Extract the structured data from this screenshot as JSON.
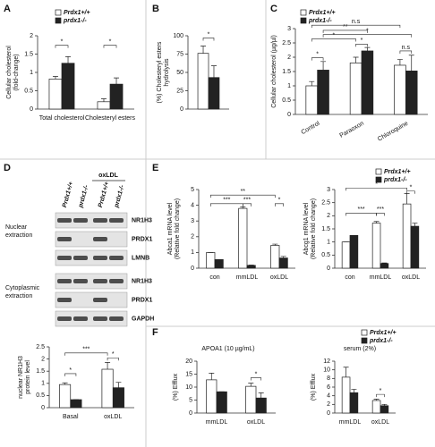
{
  "chart_data": [
    {
      "type": "bar",
      "panel": "A",
      "ylabel": [
        "Cellular cholesterol",
        "(fold-change)"
      ],
      "categories": [
        "Total cholesterol",
        "Cholesteryl esters"
      ],
      "series": [
        {
          "name": "Prdx1+/+",
          "color": "#ffffff",
          "values": [
            0.82,
            0.2
          ],
          "errors": [
            0.07,
            0.08
          ]
        },
        {
          "name": "prdx1-/-",
          "color": "#222222",
          "values": [
            1.25,
            0.68
          ],
          "errors": [
            0.18,
            0.17
          ]
        }
      ],
      "ylim": [
        0,
        2
      ],
      "yticks": [
        0,
        0.5,
        1,
        1.5,
        2
      ],
      "annotations": [
        "*",
        "*"
      ],
      "legend": "top"
    },
    {
      "type": "bar",
      "panel": "B",
      "ylabel": [
        "(%) Cholesteryl esters",
        "hydrolysis"
      ],
      "series": [
        {
          "color": "#ffffff",
          "values": [
            76
          ],
          "errors": [
            10
          ]
        },
        {
          "color": "#222222",
          "values": [
            43
          ],
          "errors": [
            16
          ]
        }
      ],
      "ylim": [
        0,
        100
      ],
      "yticks": [
        0,
        25,
        50,
        75,
        100
      ],
      "annotations": [
        "*"
      ]
    },
    {
      "type": "bar",
      "panel": "C",
      "ylabel": [
        "Cellular cholesterol (µg/µl)"
      ],
      "categories": [
        "Control",
        "Paraoxon",
        "Chloroquine"
      ],
      "series": [
        {
          "name": "Prdx1+/+",
          "color": "#ffffff",
          "values": [
            1.0,
            1.8,
            1.72
          ],
          "errors": [
            0.15,
            0.2,
            0.2
          ]
        },
        {
          "name": "prdx1-/-",
          "color": "#222222",
          "values": [
            1.55,
            2.22,
            1.52
          ],
          "errors": [
            0.3,
            0.12,
            0.55
          ]
        }
      ],
      "ylim": [
        0,
        3
      ],
      "yticks": [
        0,
        0.5,
        1,
        1.5,
        2,
        2.5,
        3
      ],
      "annotations": [
        "*",
        "*",
        "n.s",
        "*",
        "*",
        "**",
        "n.s"
      ],
      "legend": "top"
    },
    {
      "type": "bar",
      "panel": "D",
      "ylabel": [
        "nuclear NR1H3",
        "protein level"
      ],
      "categories": [
        "Basal",
        "oxLDL"
      ],
      "series": [
        {
          "color": "#ffffff",
          "values": [
            0.95,
            1.58
          ],
          "errors": [
            0.07,
            0.28
          ]
        },
        {
          "color": "#222222",
          "values": [
            0.33,
            0.82
          ],
          "errors": [
            0,
            0.22
          ]
        }
      ],
      "ylim": [
        0,
        2.5
      ],
      "yticks": [
        0,
        0.5,
        1,
        1.5,
        2,
        2.5
      ],
      "annotations": [
        "*",
        "***",
        "*"
      ]
    },
    {
      "type": "bar",
      "panel": "E",
      "ylabel": [
        "Abca1 mRNA level",
        "(Relative fold change)"
      ],
      "categories": [
        "con",
        "mmLDL",
        "oxLDL"
      ],
      "series": [
        {
          "color": "#ffffff",
          "values": [
            1.0,
            3.8,
            1.45
          ],
          "errors": [
            0,
            0.1,
            0.08
          ]
        },
        {
          "color": "#222222",
          "values": [
            0.55,
            0.18,
            0.65
          ],
          "errors": [
            0,
            0.02,
            0.1
          ]
        }
      ],
      "ylim": [
        0,
        5
      ],
      "yticks": [
        0,
        1,
        2,
        3,
        4,
        5
      ],
      "annotations": [
        "***",
        "***",
        "**",
        "*"
      ]
    },
    {
      "type": "bar",
      "ylabel": [
        "Abcg1 mRNA level",
        "(Relative fold change)"
      ],
      "categories": [
        "con",
        "mmLDL",
        "oxLDL"
      ],
      "series": [
        {
          "name": "Prdx1+/+",
          "color": "#ffffff",
          "values": [
            1.0,
            1.72,
            2.45
          ],
          "errors": [
            0,
            0.06,
            0.4
          ]
        },
        {
          "name": "prdx1-/-",
          "color": "#222222",
          "values": [
            1.25,
            0.18,
            1.6
          ],
          "errors": [
            0,
            0.02,
            0.12
          ]
        }
      ],
      "ylim": [
        0,
        3
      ],
      "yticks": [
        0,
        0.5,
        1,
        1.5,
        2,
        2.5,
        3
      ],
      "annotations": [
        "***",
        "***",
        "*",
        "*"
      ],
      "legend": "top"
    },
    {
      "type": "bar",
      "panel": "F",
      "title": "APOA1 (10 µg/mL)",
      "ylabel": [
        "(%) Efflux"
      ],
      "categories": [
        "mmLDL",
        "oxLDL"
      ],
      "series": [
        {
          "color": "#ffffff",
          "values": [
            12.8,
            10.3
          ],
          "errors": [
            2.6,
            1.2
          ]
        },
        {
          "color": "#222222",
          "values": [
            8.2,
            5.8
          ],
          "errors": [
            0,
            2.0
          ]
        }
      ],
      "ylim": [
        0,
        20
      ],
      "yticks": [
        0,
        5,
        10,
        15,
        20
      ],
      "annotations": [
        "*"
      ]
    },
    {
      "type": "bar",
      "title": "serum (2%)",
      "ylabel": [
        "(%) Efflux"
      ],
      "categories": [
        "mmLDL",
        "oxLDL"
      ],
      "series": [
        {
          "name": "Prdx1+/+",
          "color": "#ffffff",
          "values": [
            8.3,
            2.9
          ],
          "errors": [
            2.3,
            0.3
          ]
        },
        {
          "name": "prdx1-/-",
          "color": "#222222",
          "values": [
            4.7,
            1.7
          ],
          "errors": [
            0.8,
            0.3
          ]
        }
      ],
      "ylim": [
        0,
        12
      ],
      "yticks": [
        0,
        2,
        4,
        6,
        8,
        10,
        12
      ],
      "annotations": [
        "*"
      ],
      "legend": "top"
    }
  ],
  "blot": {
    "header": "oxLDL",
    "lanes": [
      "Prdx1+/+",
      "prdx1-/-",
      "Prdx1+/+",
      "prdx1-/-"
    ],
    "sections": [
      {
        "label": [
          "Nuclear",
          "extraction"
        ],
        "bands": [
          "NR1H3",
          "PRDX1",
          "LMNB"
        ]
      },
      {
        "label": [
          "Cytoplasmic",
          "extraction"
        ],
        "bands": [
          "NR1H3",
          "PRDX1",
          "GAPDH"
        ]
      }
    ]
  }
}
